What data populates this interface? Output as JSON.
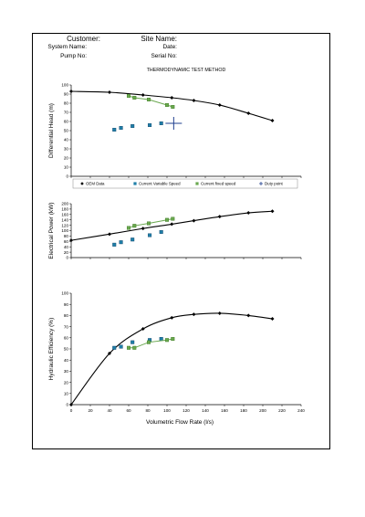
{
  "header": {
    "customer": "Customer:",
    "site_name": "Site Name:",
    "system_name": "System Name:",
    "date": "Date:",
    "pump_no": "Pump No:",
    "serial_no": "Serial No:"
  },
  "chart_data": [
    {
      "type": "line",
      "title": "THERMODYNAMIC TEST METHOD",
      "ylabel": "Differential Head (m)",
      "xlim": [
        0,
        240
      ],
      "ylim": [
        0,
        100
      ],
      "yticks": [
        0,
        10,
        20,
        30,
        40,
        50,
        60,
        70,
        80,
        90,
        100
      ],
      "legend": {
        "placement": "bottom",
        "entries": [
          "OEM Data",
          "Current Variable Speed",
          "Current fixed speed",
          "Duty point"
        ]
      },
      "series": [
        {
          "name": "OEM Data",
          "kind": "curve",
          "color": "#000000",
          "x": [
            0,
            40,
            75,
            105,
            128,
            155,
            185,
            210
          ],
          "y": [
            93,
            92,
            89,
            86,
            83,
            78,
            69,
            61
          ]
        },
        {
          "name": "Current Variable Speed",
          "kind": "points",
          "color": "#1f7fa8",
          "x": [
            45,
            52,
            64,
            82,
            94
          ],
          "y": [
            51,
            53,
            55,
            56,
            58
          ]
        },
        {
          "name": "Current fixed speed",
          "kind": "line",
          "color": "#6aa84f",
          "x": [
            60,
            66,
            81,
            100,
            106
          ],
          "y": [
            88,
            86,
            84,
            78,
            76
          ]
        },
        {
          "name": "Duty point",
          "kind": "cross",
          "color": "#1f3f8f",
          "x": [
            107
          ],
          "y": [
            58
          ]
        }
      ]
    },
    {
      "type": "line",
      "ylabel": "Electrical Power (kW)",
      "xlim": [
        0,
        240
      ],
      "ylim": [
        0,
        200
      ],
      "yticks": [
        0,
        20,
        40,
        60,
        80,
        100,
        120,
        140,
        160,
        180,
        200
      ],
      "series": [
        {
          "name": "OEM Data",
          "kind": "curve",
          "color": "#000000",
          "x": [
            0,
            40,
            75,
            105,
            128,
            155,
            185,
            210
          ],
          "y": [
            64,
            87,
            108,
            124,
            137,
            152,
            166,
            172
          ]
        },
        {
          "name": "Current Variable Speed",
          "kind": "points",
          "color": "#1f7fa8",
          "x": [
            45,
            52,
            64,
            82,
            94
          ],
          "y": [
            48,
            57,
            67,
            83,
            95
          ]
        },
        {
          "name": "Current fixed speed",
          "kind": "line",
          "color": "#6aa84f",
          "x": [
            60,
            66,
            81,
            100,
            106
          ],
          "y": [
            110,
            118,
            127,
            140,
            144
          ]
        }
      ]
    },
    {
      "type": "line",
      "ylabel": "Hydraulic Efficiency (%)",
      "xlabel": "Volumetric Flow Rate (l/s)",
      "xlim": [
        0,
        240
      ],
      "ylim": [
        0,
        100
      ],
      "xticks": [
        0,
        20,
        40,
        60,
        80,
        100,
        120,
        140,
        160,
        180,
        200,
        220,
        240
      ],
      "yticks": [
        0,
        10,
        20,
        30,
        40,
        50,
        60,
        70,
        80,
        90,
        100
      ],
      "series": [
        {
          "name": "OEM Data",
          "kind": "curve",
          "color": "#000000",
          "x": [
            0,
            40,
            75,
            105,
            128,
            155,
            185,
            210
          ],
          "y": [
            0,
            46,
            68,
            78,
            81,
            82,
            80,
            77
          ]
        },
        {
          "name": "Current Variable Speed",
          "kind": "points",
          "color": "#1f7fa8",
          "x": [
            45,
            52,
            64,
            82,
            94
          ],
          "y": [
            51,
            52,
            56,
            58,
            59
          ]
        },
        {
          "name": "Current fixed speed",
          "kind": "line",
          "color": "#6aa84f",
          "x": [
            60,
            66,
            81,
            100,
            106
          ],
          "y": [
            51,
            51,
            56,
            58,
            59
          ]
        }
      ]
    }
  ]
}
